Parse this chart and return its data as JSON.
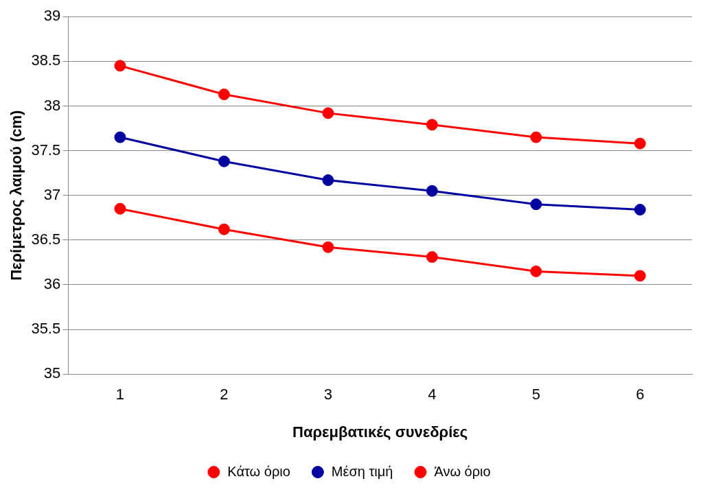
{
  "chart_data": {
    "type": "line",
    "xlabel": "Παρεμβατικές συνεδρίες",
    "ylabel": "Περίμετρος λαιμού (cm)",
    "categories": [
      "1",
      "2",
      "3",
      "4",
      "5",
      "6"
    ],
    "series": [
      {
        "name": "Κάτω όριο",
        "color": "#ff0000",
        "values": [
          36.85,
          36.62,
          36.42,
          36.31,
          36.15,
          36.1
        ]
      },
      {
        "name": "Μέση τιμή",
        "color": "#0000a0",
        "values": [
          37.65,
          37.38,
          37.17,
          37.05,
          36.9,
          36.84
        ]
      },
      {
        "name": "Άνω όριο",
        "color": "#ff0000",
        "values": [
          38.45,
          38.13,
          37.92,
          37.79,
          37.65,
          37.58
        ]
      }
    ],
    "ylim": [
      35,
      39
    ],
    "yticks": [
      35,
      35.5,
      36,
      36.5,
      37,
      37.5,
      38,
      38.5,
      39
    ],
    "grid": "y",
    "legend": "bottom",
    "marker": "circle",
    "line_style": "solid"
  }
}
